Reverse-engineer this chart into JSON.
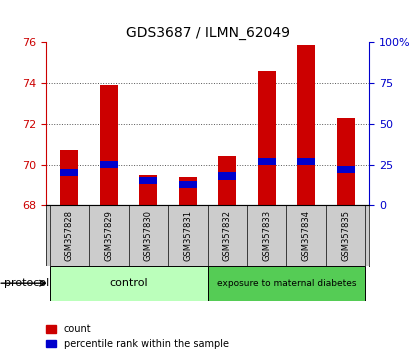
{
  "title": "GDS3687 / ILMN_62049",
  "samples": [
    "GSM357828",
    "GSM357829",
    "GSM357830",
    "GSM357831",
    "GSM357832",
    "GSM357833",
    "GSM357834",
    "GSM357835"
  ],
  "count_values": [
    70.7,
    73.9,
    69.5,
    69.4,
    70.4,
    74.6,
    75.9,
    72.3
  ],
  "percentile_values": [
    20,
    25,
    15,
    13,
    18,
    27,
    27,
    22
  ],
  "ylim_left": [
    68,
    76
  ],
  "ylim_right": [
    0,
    100
  ],
  "yticks_left": [
    68,
    70,
    72,
    74,
    76
  ],
  "yticks_right": [
    0,
    25,
    50,
    75,
    100
  ],
  "ytick_labels_right": [
    "0",
    "25",
    "50",
    "75",
    "100%"
  ],
  "bar_bottom": 68,
  "control_samples": 4,
  "control_label": "control",
  "treatment_label": "exposure to maternal diabetes",
  "protocol_label": "protocol",
  "legend_count_label": "count",
  "legend_percentile_label": "percentile rank within the sample",
  "count_color": "#cc0000",
  "percentile_color": "#0000cc",
  "control_bg": "#bbffbb",
  "treatment_bg": "#55cc55",
  "tick_label_bg": "#cccccc",
  "bar_width": 0.45,
  "dotted_grid_color": "#555555",
  "percentile_bar_height": 0.35,
  "title_fontsize": 10,
  "tick_fontsize": 8,
  "sample_fontsize": 6,
  "protocol_fontsize": 8
}
